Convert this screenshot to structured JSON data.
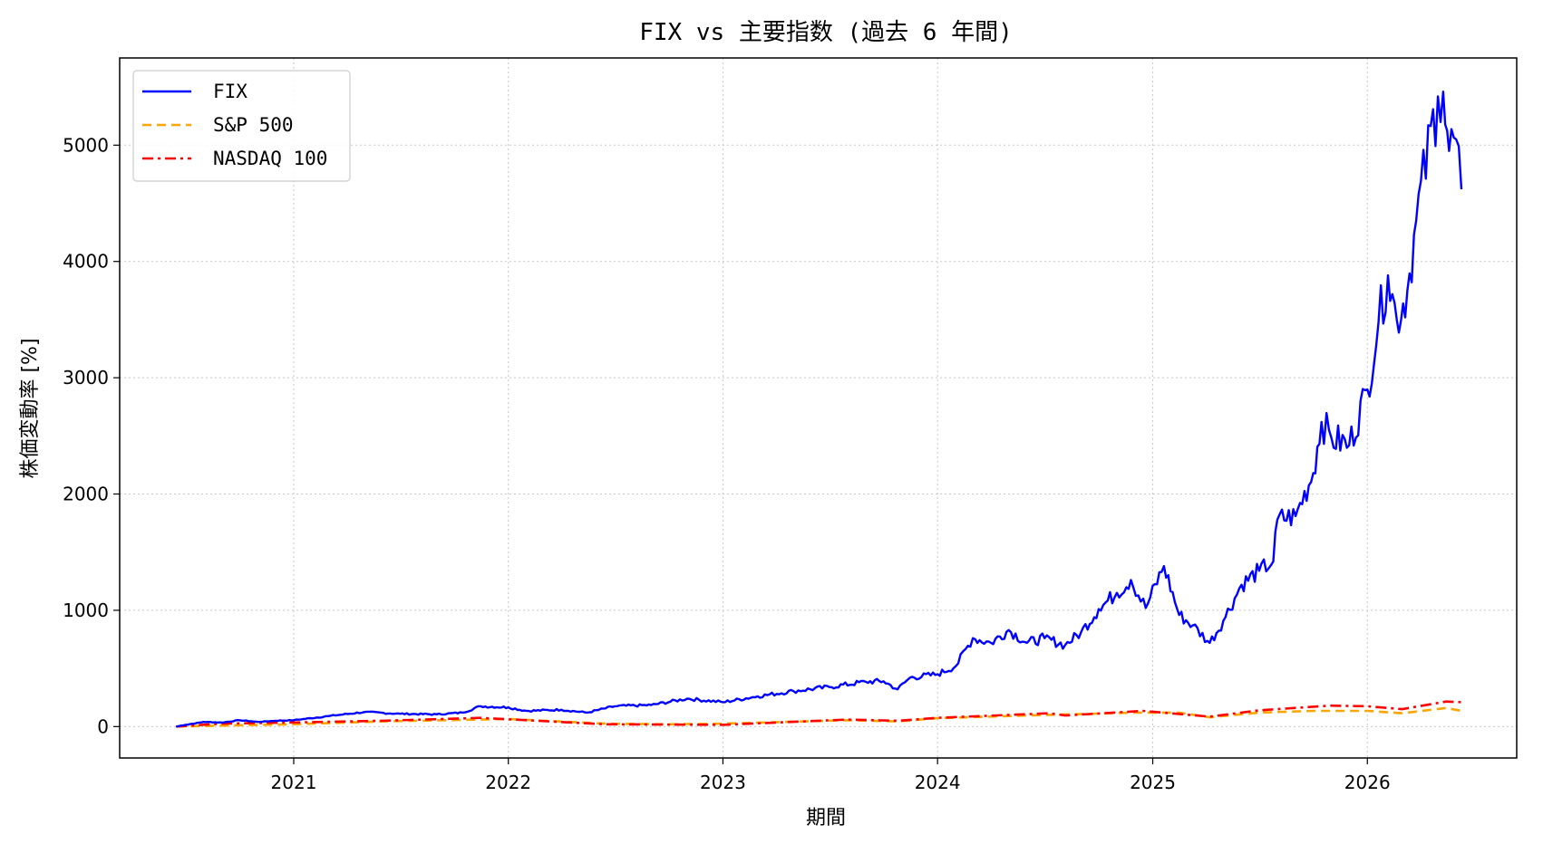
{
  "chart_data": {
    "type": "line",
    "title": "FIX vs 主要指数 (過去 6 年間)",
    "xlabel": "期間",
    "ylabel": "株価変動率 [%]",
    "xlim": [
      "2020-03-11",
      "2026-09-12"
    ],
    "ylim": [
      -270,
      5750
    ],
    "xticks": [
      "2021",
      "2022",
      "2023",
      "2024",
      "2025",
      "2026"
    ],
    "yticks": [
      0,
      1000,
      2000,
      3000,
      4000,
      5000
    ],
    "grid": true,
    "legend": "top-left",
    "series": [
      {
        "name": "FIX",
        "color": "#0000ff",
        "style": "solid",
        "points": [
          [
            "2020-06-15",
            0
          ],
          [
            "2020-07-01",
            15
          ],
          [
            "2020-08-01",
            40
          ],
          [
            "2020-09-01",
            35
          ],
          [
            "2020-10-01",
            55
          ],
          [
            "2020-11-01",
            40
          ],
          [
            "2020-12-01",
            50
          ],
          [
            "2021-01-01",
            55
          ],
          [
            "2021-03-01",
            90
          ],
          [
            "2021-05-01",
            125
          ],
          [
            "2021-07-01",
            110
          ],
          [
            "2021-09-01",
            105
          ],
          [
            "2021-10-15",
            120
          ],
          [
            "2021-11-15",
            175
          ],
          [
            "2022-01-01",
            165
          ],
          [
            "2022-02-01",
            135
          ],
          [
            "2022-04-01",
            145
          ],
          [
            "2022-05-15",
            120
          ],
          [
            "2022-07-01",
            175
          ],
          [
            "2022-09-01",
            185
          ],
          [
            "2022-11-01",
            240
          ],
          [
            "2023-01-01",
            210
          ],
          [
            "2023-03-01",
            260
          ],
          [
            "2023-05-01",
            305
          ],
          [
            "2023-07-01",
            340
          ],
          [
            "2023-09-01",
            385
          ],
          [
            "2023-10-01",
            390
          ],
          [
            "2023-10-25",
            320
          ],
          [
            "2023-11-15",
            420
          ],
          [
            "2024-01-01",
            450
          ],
          [
            "2024-02-01",
            520
          ],
          [
            "2024-03-01",
            760
          ],
          [
            "2024-04-01",
            720
          ],
          [
            "2024-05-01",
            830
          ],
          [
            "2024-06-01",
            720
          ],
          [
            "2024-07-01",
            760
          ],
          [
            "2024-08-05",
            700
          ],
          [
            "2024-09-01",
            810
          ],
          [
            "2024-10-01",
            1010
          ],
          [
            "2024-11-01",
            1150
          ],
          [
            "2024-11-25",
            1260
          ],
          [
            "2024-12-20",
            1020
          ],
          [
            "2025-01-20",
            1380
          ],
          [
            "2025-02-15",
            960
          ],
          [
            "2025-03-10",
            870
          ],
          [
            "2025-04-08",
            720
          ],
          [
            "2025-05-01",
            910
          ],
          [
            "2025-06-01",
            1220
          ],
          [
            "2025-07-01",
            1340
          ],
          [
            "2025-07-25",
            1420
          ],
          [
            "2025-08-01",
            1780
          ],
          [
            "2025-09-01",
            1810
          ],
          [
            "2025-10-01",
            2180
          ],
          [
            "2025-10-15",
            2620
          ],
          [
            "2025-11-01",
            2480
          ],
          [
            "2025-12-01",
            2420
          ],
          [
            "2026-01-01",
            2900
          ],
          [
            "2026-01-20",
            3480
          ],
          [
            "2026-02-05",
            3880
          ],
          [
            "2026-02-20",
            3500
          ],
          [
            "2026-03-10",
            3750
          ],
          [
            "2026-03-25",
            4350
          ],
          [
            "2026-05-01",
            5420
          ],
          [
            "2026-05-10",
            5460
          ],
          [
            "2026-05-20",
            4950
          ],
          [
            "2026-06-01",
            5050
          ],
          [
            "2026-06-10",
            4620
          ]
        ]
      },
      {
        "name": "S&P 500",
        "color": "#ffa500",
        "style": "dashed",
        "points": [
          [
            "2020-06-15",
            0
          ],
          [
            "2021-01-01",
            20
          ],
          [
            "2021-06-01",
            45
          ],
          [
            "2021-12-31",
            65
          ],
          [
            "2022-06-15",
            25
          ],
          [
            "2022-10-01",
            20
          ],
          [
            "2023-01-01",
            25
          ],
          [
            "2023-07-31",
            55
          ],
          [
            "2023-10-27",
            45
          ],
          [
            "2023-12-31",
            72
          ],
          [
            "2024-06-01",
            95
          ],
          [
            "2024-12-01",
            120
          ],
          [
            "2025-02-15",
            120
          ],
          [
            "2025-04-08",
            80
          ],
          [
            "2025-07-01",
            120
          ],
          [
            "2025-10-01",
            135
          ],
          [
            "2026-01-01",
            135
          ],
          [
            "2026-03-01",
            115
          ],
          [
            "2026-05-15",
            160
          ],
          [
            "2026-06-10",
            135
          ]
        ]
      },
      {
        "name": "NASDAQ 100",
        "color": "#ff0000",
        "style": "dashdot",
        "points": [
          [
            "2020-06-15",
            0
          ],
          [
            "2020-09-01",
            25
          ],
          [
            "2021-01-01",
            35
          ],
          [
            "2021-06-01",
            50
          ],
          [
            "2021-11-15",
            75
          ],
          [
            "2022-06-15",
            20
          ],
          [
            "2022-12-31",
            15
          ],
          [
            "2023-07-31",
            60
          ],
          [
            "2023-10-27",
            50
          ],
          [
            "2023-12-31",
            75
          ],
          [
            "2024-07-10",
            115
          ],
          [
            "2024-08-05",
            95
          ],
          [
            "2024-12-15",
            135
          ],
          [
            "2025-04-08",
            85
          ],
          [
            "2025-07-01",
            140
          ],
          [
            "2025-10-30",
            180
          ],
          [
            "2026-01-01",
            175
          ],
          [
            "2026-03-01",
            150
          ],
          [
            "2026-05-15",
            215
          ],
          [
            "2026-06-10",
            210
          ]
        ]
      }
    ]
  }
}
